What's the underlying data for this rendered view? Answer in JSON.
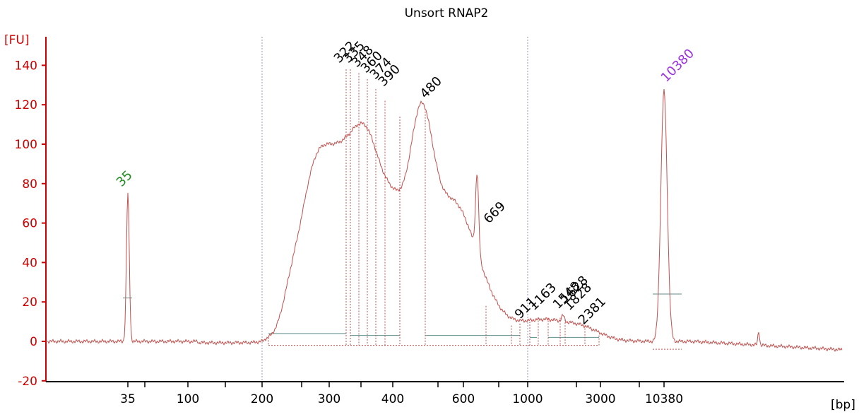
{
  "chart_data": {
    "type": "line",
    "title": "Unsort RNAP2",
    "ylabel": "[FU]",
    "xlabel": "[bp]",
    "ylim": [
      -20,
      150
    ],
    "y_ticks": [
      -20,
      0,
      20,
      40,
      60,
      80,
      100,
      120,
      140
    ],
    "x_scale": "electropherogram bp (nonlinear)",
    "x_tick_labels": [
      "35",
      "100",
      "200",
      "300",
      "400",
      "600",
      "1000",
      "3000",
      "10380"
    ],
    "grid": false,
    "colors": {
      "trace": "#c0504d",
      "axis": "#cc0000",
      "marker_green": "#1e8c1e",
      "marker_purple": "#9b30e0",
      "baseline": "#5f8f8a",
      "dotted_guide": "#9a9ab8"
    },
    "peaks": [
      {
        "label": "35",
        "bp": 35,
        "fu": 75,
        "kind": "lower-marker"
      },
      {
        "label": "322",
        "bp": 322,
        "fu": 138,
        "kind": "peak"
      },
      {
        "label": "335",
        "bp": 335,
        "fu": 138,
        "kind": "peak"
      },
      {
        "label": "348",
        "bp": 348,
        "fu": 136,
        "kind": "peak"
      },
      {
        "label": "360",
        "bp": 360,
        "fu": 134,
        "kind": "peak"
      },
      {
        "label": "374",
        "bp": 374,
        "fu": 130,
        "kind": "peak"
      },
      {
        "label": "390",
        "bp": 390,
        "fu": 126,
        "kind": "peak"
      },
      {
        "label": "480",
        "bp": 480,
        "fu": 120,
        "kind": "peak"
      },
      {
        "label": "669",
        "bp": 669,
        "fu": 57,
        "kind": "peak"
      },
      {
        "label": "911",
        "bp": 911,
        "fu": 10,
        "kind": "peak"
      },
      {
        "label": "1163",
        "bp": 1163,
        "fu": 13,
        "kind": "peak"
      },
      {
        "label": "1548",
        "bp": 1548,
        "fu": 13,
        "kind": "peak"
      },
      {
        "label": "1628",
        "bp": 1628,
        "fu": 14,
        "kind": "peak"
      },
      {
        "label": "1828",
        "bp": 1828,
        "fu": 12,
        "kind": "peak"
      },
      {
        "label": "2381",
        "bp": 2381,
        "fu": 8,
        "kind": "peak"
      },
      {
        "label": "10380",
        "bp": 10380,
        "fu": 129,
        "kind": "upper-marker"
      }
    ]
  }
}
